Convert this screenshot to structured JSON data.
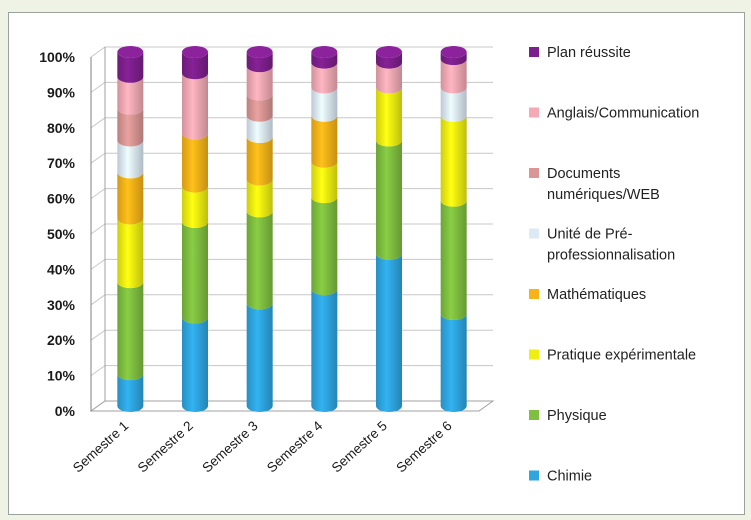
{
  "chart_data": {
    "type": "bar",
    "stacked": true,
    "percent": true,
    "categories": [
      "Semestre 1",
      "Semestre 2",
      "Semestre 3",
      "Semestre 4",
      "Semestre 5",
      "Semestre 6"
    ],
    "y_ticks": [
      "0%",
      "10%",
      "20%",
      "30%",
      "40%",
      "50%",
      "60%",
      "70%",
      "80%",
      "90%",
      "100%"
    ],
    "ylim": [
      0,
      100
    ],
    "legend_position": "right",
    "series": [
      {
        "name": "Chimie",
        "color": "#2ea6e0",
        "values": [
          9,
          25,
          29,
          33,
          43,
          26
        ]
      },
      {
        "name": "Physique",
        "color": "#7fbf3f",
        "values": [
          26,
          27,
          26,
          26,
          32,
          32
        ]
      },
      {
        "name": "Pratique expérimentale",
        "color": "#eeee11",
        "values": [
          18,
          10,
          9,
          10,
          15,
          24
        ]
      },
      {
        "name": "Mathématiques",
        "color": "#f7b318",
        "values": [
          13,
          15,
          12,
          13,
          0,
          0
        ]
      },
      {
        "name": "Unité de Pré-professionnalisation",
        "color": "#dceaf6",
        "values": [
          9,
          0,
          6,
          8,
          0,
          8
        ]
      },
      {
        "name": "Documents numériques/WEB",
        "color": "#d99694",
        "values": [
          9,
          0,
          6,
          0,
          0,
          0
        ]
      },
      {
        "name": "Anglais/Communication",
        "color": "#f4a9b4",
        "values": [
          9,
          17,
          8,
          7,
          7,
          8
        ]
      },
      {
        "name": "Plan réussite",
        "color": "#7d1f8c",
        "values": [
          7,
          6,
          4,
          3,
          3,
          2
        ]
      }
    ],
    "legend": [
      {
        "lines": [
          "Plan réussite"
        ],
        "color": "#7d1f8c"
      },
      {
        "lines": [
          "Anglais/Communication"
        ],
        "color": "#f4a9b4"
      },
      {
        "lines": [
          "Documents",
          "numériques/WEB"
        ],
        "color": "#d99694"
      },
      {
        "lines": [
          "Unité de Pré-",
          "professionnalisation"
        ],
        "color": "#dceaf6"
      },
      {
        "lines": [
          "Mathématiques"
        ],
        "color": "#f7b318"
      },
      {
        "lines": [
          "Pratique expérimentale"
        ],
        "color": "#eeee11"
      },
      {
        "lines": [
          "Physique"
        ],
        "color": "#7fbf3f"
      },
      {
        "lines": [
          "Chimie"
        ],
        "color": "#2ea6e0"
      }
    ]
  }
}
